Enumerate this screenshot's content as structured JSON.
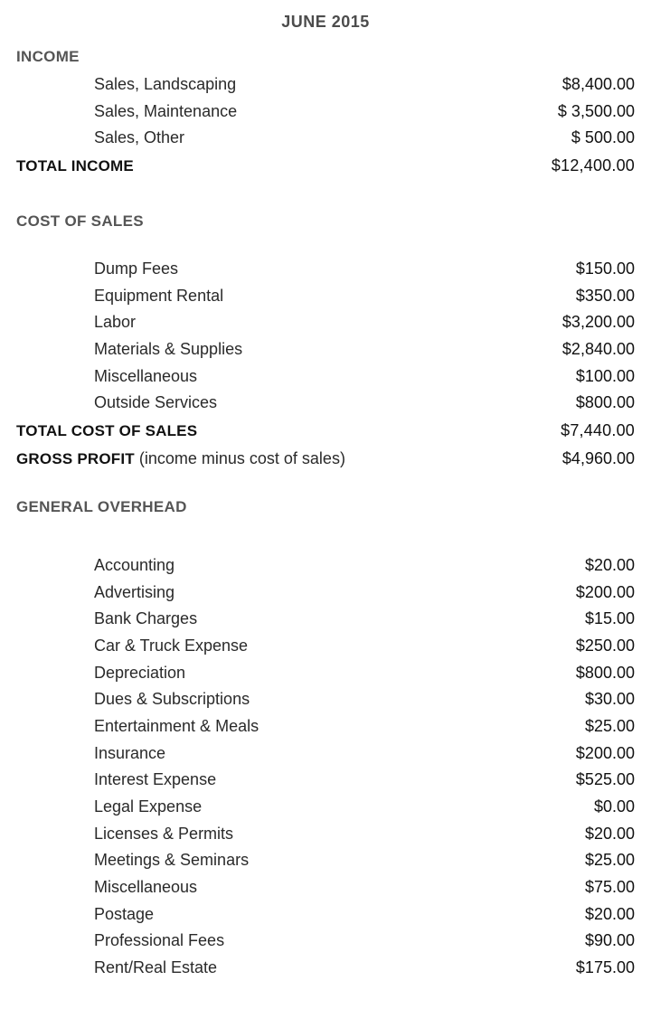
{
  "title": "JUNE 2015",
  "income": {
    "heading": "INCOME",
    "items": [
      {
        "label": "Sales, Landscaping",
        "value": "$8,400.00"
      },
      {
        "label": "Sales, Maintenance",
        "value": "$ 3,500.00"
      },
      {
        "label": "Sales, Other",
        "value": "$ 500.00"
      }
    ],
    "total_label": "TOTAL INCOME",
    "total_value": "$12,400.00"
  },
  "cost_of_sales": {
    "heading": "COST OF SALES",
    "items": [
      {
        "label": "Dump Fees",
        "value": "$150.00"
      },
      {
        "label": "Equipment Rental",
        "value": "$350.00"
      },
      {
        "label": "Labor",
        "value": "$3,200.00"
      },
      {
        "label": "Materials & Supplies",
        "value": "$2,840.00"
      },
      {
        "label": "Miscellaneous",
        "value": "$100.00"
      },
      {
        "label": "Outside Services",
        "value": "$800.00"
      }
    ],
    "total_label": "TOTAL COST OF SALES",
    "total_value": "$7,440.00"
  },
  "gross_profit": {
    "label_bold": "GROSS PROFIT",
    "label_note": " (income minus cost of sales)",
    "value": "$4,960.00"
  },
  "overhead": {
    "heading": "GENERAL OVERHEAD",
    "items": [
      {
        "label": "Accounting",
        "value": "$20.00"
      },
      {
        "label": "Advertising",
        "value": "$200.00"
      },
      {
        "label": "Bank Charges",
        "value": "$15.00"
      },
      {
        "label": "Car & Truck Expense",
        "value": "$250.00"
      },
      {
        "label": "Depreciation",
        "value": "$800.00"
      },
      {
        "label": "Dues & Subscriptions",
        "value": "$30.00"
      },
      {
        "label": "Entertainment & Meals",
        "value": "$25.00"
      },
      {
        "label": "Insurance",
        "value": "$200.00"
      },
      {
        "label": "Interest Expense",
        "value": "$525.00"
      },
      {
        "label": "Legal Expense",
        "value": "$0.00"
      },
      {
        "label": "Licenses & Permits",
        "value": "$20.00"
      },
      {
        "label": "Meetings & Seminars",
        "value": "$25.00"
      },
      {
        "label": "Miscellaneous",
        "value": "$75.00"
      },
      {
        "label": "Postage",
        "value": "$20.00"
      },
      {
        "label": "Professional Fees",
        "value": "$90.00"
      },
      {
        "label": "Rent/Real Estate",
        "value": "$175.00"
      }
    ]
  }
}
